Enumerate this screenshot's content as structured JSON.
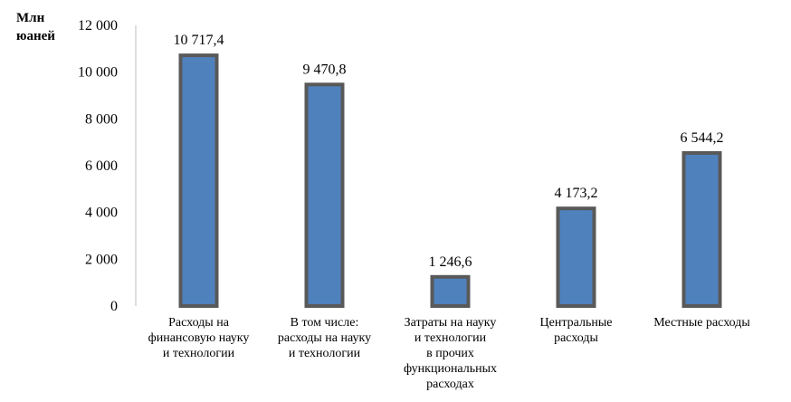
{
  "chart_data": {
    "type": "bar",
    "ylabel_lines": [
      "Млн",
      "юаней"
    ],
    "categories": [
      [
        "Расходы на",
        "финансовую науку",
        "и технологии"
      ],
      [
        "В том числе:",
        "расходы на науку",
        "и технологии"
      ],
      [
        "Затраты на науку",
        "и технологии",
        "в прочих",
        "функциональных",
        "расходах"
      ],
      [
        "Центральные",
        "расходы"
      ],
      [
        "Местные расходы"
      ]
    ],
    "values": [
      10717.4,
      9470.8,
      1246.6,
      4173.2,
      6544.2
    ],
    "value_labels": [
      "10 717,4",
      "9 470,8",
      "1 246,6",
      "4 173,2",
      "6 544,2"
    ],
    "ylim": [
      0,
      12000
    ],
    "yticks": [
      0,
      2000,
      4000,
      6000,
      8000,
      10000,
      12000
    ],
    "ytick_labels": [
      "0",
      "2 000",
      "4 000",
      "6 000",
      "8 000",
      "10 000",
      "12 000"
    ],
    "grid": false,
    "bar_color": "#4F81BD",
    "bar_border_color": "#595959"
  }
}
